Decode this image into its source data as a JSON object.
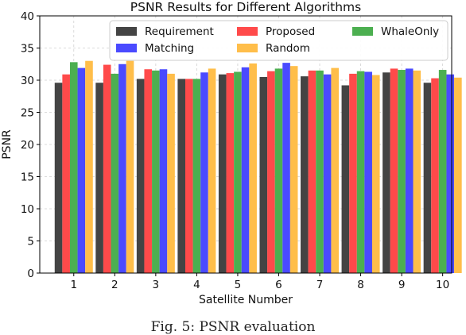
{
  "caption": "Fig. 5: PSNR evaluation",
  "chart_data": {
    "type": "bar",
    "title": "PSNR Results for Different Algorithms",
    "xlabel": "Satellite Number",
    "ylabel": "PSNR",
    "ylim": [
      0,
      40
    ],
    "yticks": [
      0,
      5,
      10,
      15,
      20,
      25,
      30,
      35,
      40
    ],
    "grid": true,
    "legend_position": "top-right",
    "categories": [
      "1",
      "2",
      "3",
      "4",
      "5",
      "6",
      "7",
      "8",
      "9",
      "10"
    ],
    "series": [
      {
        "name": "Requirement",
        "color": "#444444",
        "values": [
          29.6,
          29.6,
          30.2,
          30.2,
          30.9,
          30.5,
          30.6,
          29.2,
          31.2,
          29.6
        ]
      },
      {
        "name": "Proposed",
        "color": "#ff4a4a",
        "values": [
          30.9,
          32.4,
          31.7,
          30.2,
          31.1,
          31.4,
          31.5,
          31.0,
          31.8,
          30.3
        ]
      },
      {
        "name": "WhaleOnly",
        "color": "#4caf50",
        "values": [
          32.8,
          31.0,
          31.5,
          30.2,
          31.3,
          31.8,
          31.5,
          31.4,
          31.6,
          31.6
        ]
      },
      {
        "name": "Matching",
        "color": "#4a4aff",
        "values": [
          31.9,
          32.5,
          31.7,
          31.2,
          32.0,
          32.7,
          30.9,
          31.3,
          31.8,
          30.9
        ]
      },
      {
        "name": "Random",
        "color": "#ffbe4a",
        "values": [
          33.0,
          33.0,
          31.0,
          31.8,
          32.6,
          32.2,
          31.9,
          30.8,
          31.5,
          30.4
        ]
      }
    ]
  }
}
